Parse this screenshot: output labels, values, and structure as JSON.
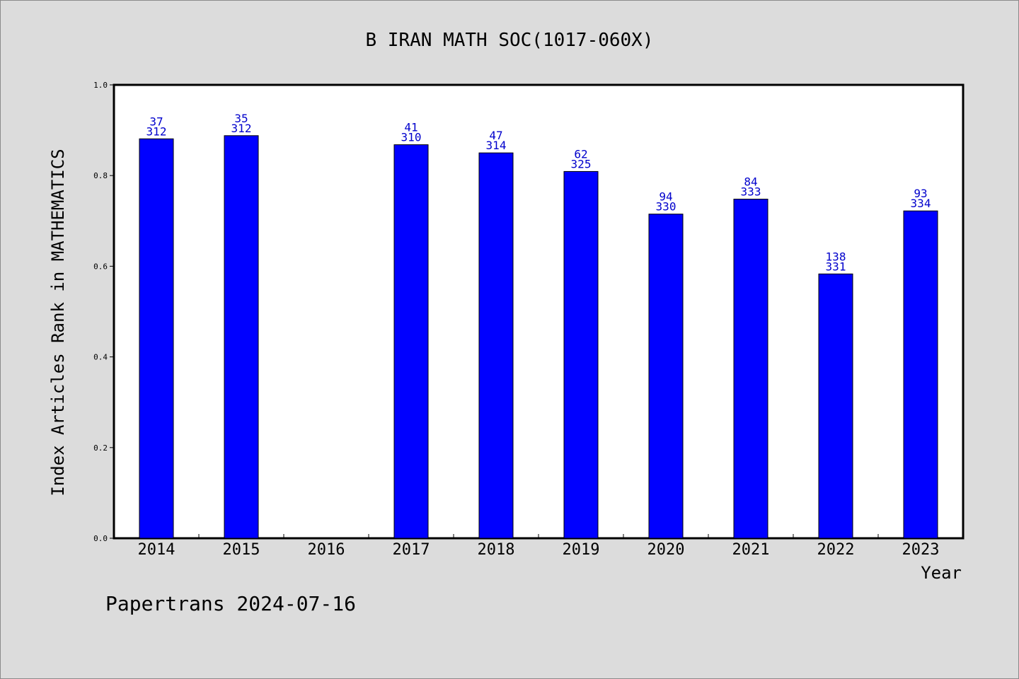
{
  "chart_data": {
    "type": "bar",
    "title": "B IRAN MATH SOC(1017-060X)",
    "xlabel": "Year",
    "ylabel": "Index Articles Rank in MATHEMATICS",
    "categories": [
      "2014",
      "2015",
      "2016",
      "2017",
      "2018",
      "2019",
      "2020",
      "2021",
      "2022",
      "2023"
    ],
    "values": [
      0.881,
      0.888,
      null,
      0.868,
      0.85,
      0.809,
      0.715,
      0.748,
      0.583,
      0.722
    ],
    "labels_top": [
      "37",
      "35",
      "",
      "41",
      "47",
      "62",
      "94",
      "84",
      "138",
      "93"
    ],
    "labels_bottom": [
      "312",
      "312",
      "",
      "310",
      "314",
      "325",
      "330",
      "333",
      "331",
      "334"
    ],
    "ylim": [
      0,
      1.0
    ],
    "yticks": [
      "0.0",
      "0.2",
      "0.4",
      "0.6",
      "0.8",
      "1.0"
    ],
    "grid": false,
    "bar_color": "#0000ff",
    "label_color": "#0000cc"
  },
  "footer": "Papertrans 2024-07-16"
}
